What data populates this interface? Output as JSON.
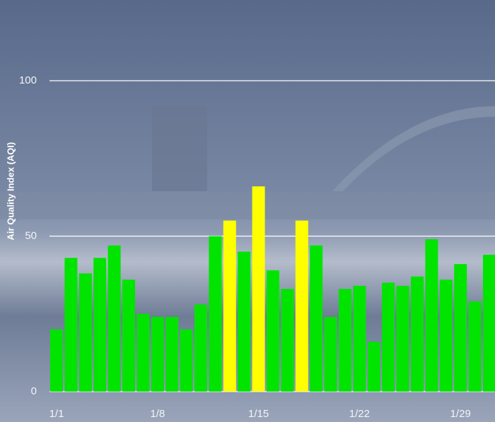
{
  "chart_data": {
    "type": "bar",
    "y_label": "Air Quality Index (AQI)",
    "categories": [
      "1/1",
      null,
      null,
      null,
      null,
      null,
      null,
      "1/8",
      null,
      null,
      null,
      null,
      null,
      null,
      "1/15",
      null,
      null,
      null,
      null,
      null,
      null,
      "1/22",
      null,
      null,
      null,
      null,
      null,
      null,
      "1/29",
      null,
      null
    ],
    "values": [
      20,
      43,
      38,
      43,
      47,
      36,
      25,
      24,
      24,
      20,
      28,
      50,
      55,
      45,
      66,
      39,
      33,
      55,
      47,
      24,
      33,
      34,
      16,
      35,
      34,
      37,
      49,
      36,
      41,
      29,
      44
    ],
    "colors": [
      "#00e400",
      "#00e400",
      "#00e400",
      "#00e400",
      "#00e400",
      "#00e400",
      "#00e400",
      "#00e400",
      "#00e400",
      "#00e400",
      "#00e400",
      "#00e400",
      "#ffff00",
      "#00e400",
      "#ffff00",
      "#00e400",
      "#00e400",
      "#ffff00",
      "#00e400",
      "#00e400",
      "#00e400",
      "#00e400",
      "#00e400",
      "#00e400",
      "#00e400",
      "#00e400",
      "#00e400",
      "#00e400",
      "#00e400",
      "#00e400",
      "#00e400"
    ],
    "ylim": [
      0,
      100
    ],
    "yticks": [
      0,
      50,
      100
    ],
    "grid": true
  }
}
